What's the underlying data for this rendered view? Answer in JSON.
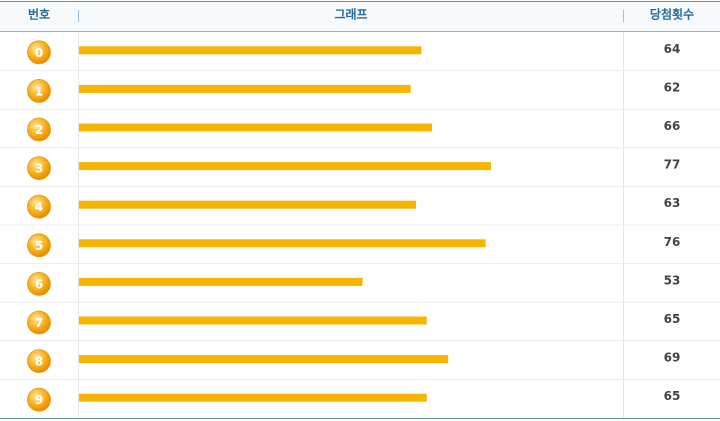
{
  "table": {
    "headers": [
      "번호",
      "그래프",
      "당첨횟수"
    ],
    "rows": [
      {
        "label": "0",
        "value": 64
      },
      {
        "label": "1",
        "value": 62
      },
      {
        "label": "2",
        "value": 66
      },
      {
        "label": "3",
        "value": 77
      },
      {
        "label": "4",
        "value": 63
      },
      {
        "label": "5",
        "value": 76
      },
      {
        "label": "6",
        "value": 53
      },
      {
        "label": "7",
        "value": 65
      },
      {
        "label": "8",
        "value": 69
      },
      {
        "label": "9",
        "value": 65
      }
    ]
  }
}
